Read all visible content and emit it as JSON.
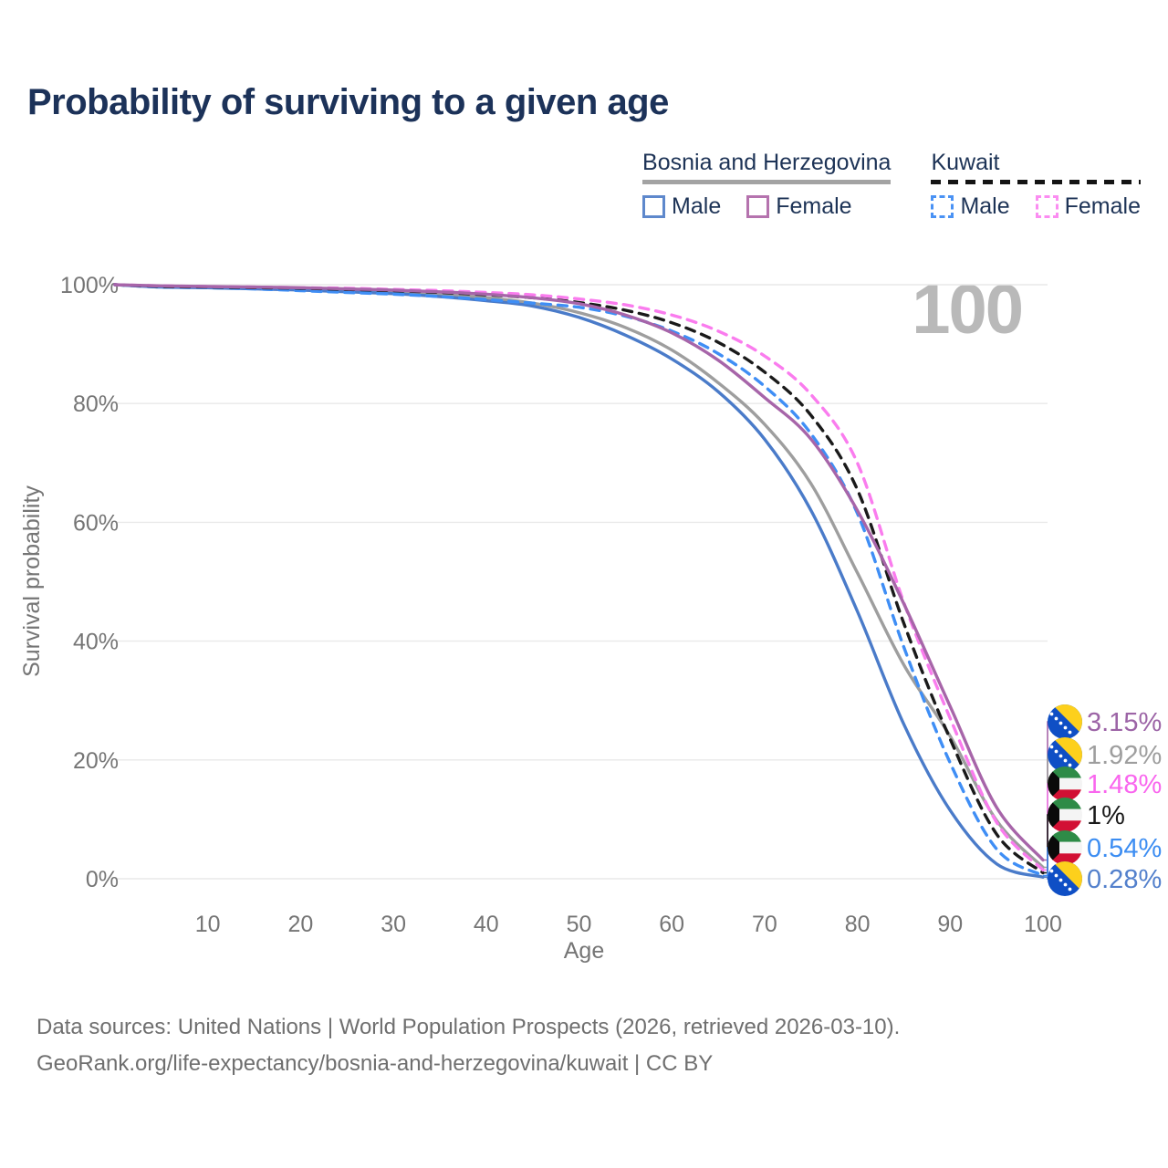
{
  "title": "Probability of surviving to a given age",
  "legend": {
    "groups": [
      {
        "label": "Bosnia and Herzegovina",
        "underline_style": "solid",
        "underline_color": "#a3a3a3",
        "items": [
          {
            "label": "Male",
            "swatch_color": "#5e88cc",
            "swatch_style": "solid"
          },
          {
            "label": "Female",
            "swatch_color": "#b573ae",
            "swatch_style": "solid"
          }
        ]
      },
      {
        "label": "Kuwait",
        "underline_style": "dashed",
        "underline_color": "#141414",
        "items": [
          {
            "label": "Male",
            "swatch_color": "#4a92f4",
            "swatch_style": "dashed"
          },
          {
            "label": "Female",
            "swatch_color": "#fb8df1",
            "swatch_style": "dashed"
          }
        ]
      }
    ]
  },
  "hover_annotation": {
    "age_label": "100"
  },
  "chart_data": {
    "type": "line",
    "xlabel": "Age",
    "ylabel": "Survival probability",
    "x_ticks": [
      10,
      20,
      30,
      40,
      50,
      60,
      70,
      80,
      90,
      100
    ],
    "y_ticks": [
      0,
      20,
      40,
      60,
      80,
      100
    ],
    "y_tick_suffix": "%",
    "xlim": [
      0,
      100
    ],
    "ylim": [
      0,
      100
    ],
    "grid": "horizontal",
    "x": [
      0,
      5,
      10,
      15,
      20,
      25,
      30,
      35,
      40,
      45,
      50,
      55,
      60,
      65,
      70,
      75,
      80,
      85,
      90,
      95,
      100
    ],
    "series": [
      {
        "id": "bih_both",
        "name": "Bosnia and Herzegovina — Both sexes",
        "country": "Bosnia and Herzegovina",
        "sex": "both",
        "line": "solid",
        "color": "#9e9e9e",
        "flag": "bih",
        "end_label": "1.92%",
        "label_color": "#9e9e9e",
        "end_value": 1.92,
        "values": [
          100,
          99.7,
          99.6,
          99.5,
          99.3,
          99.1,
          98.8,
          98.4,
          97.8,
          96.9,
          95.3,
          92.8,
          89.0,
          83.5,
          76.5,
          66.5,
          51.5,
          36.0,
          24.0,
          9.8,
          1.92
        ]
      },
      {
        "id": "bih_male",
        "name": "Bosnia and Herzegovina — Male",
        "country": "Bosnia and Herzegovina",
        "sex": "male",
        "line": "solid",
        "color": "#4a7bc9",
        "flag": "bih",
        "end_label": "0.28%",
        "label_color": "#5380cc",
        "end_value": 0.28,
        "values": [
          100,
          99.6,
          99.5,
          99.3,
          99.1,
          98.8,
          98.5,
          98.0,
          97.3,
          96.4,
          94.5,
          91.5,
          87.5,
          82.0,
          74.0,
          62.0,
          45.0,
          26.0,
          11.5,
          2.5,
          0.28
        ]
      },
      {
        "id": "kw_male",
        "name": "Kuwait — Male",
        "country": "Kuwait",
        "sex": "male",
        "line": "dashed",
        "color": "#3f8ef5",
        "flag": "kuwait",
        "end_label": "0.54%",
        "label_color": "#3c8df2",
        "end_value": 0.54,
        "values": [
          100,
          99.6,
          99.5,
          99.3,
          99.0,
          98.7,
          98.4,
          98.0,
          97.5,
          96.9,
          96.2,
          94.7,
          92.2,
          88.4,
          82.9,
          74.9,
          61.5,
          39.0,
          19.5,
          5.0,
          0.54
        ]
      },
      {
        "id": "kw_both",
        "name": "Kuwait — Both sexes",
        "country": "Kuwait",
        "sex": "both",
        "line": "dashed",
        "color": "#1a1a1a",
        "flag": "kuwait",
        "end_label": "1%",
        "label_color": "#1a1a1a",
        "end_value": 1.0,
        "values": [
          100,
          99.7,
          99.6,
          99.5,
          99.4,
          99.2,
          99.0,
          98.7,
          98.3,
          97.8,
          97.0,
          95.7,
          93.6,
          90.3,
          85.3,
          78.0,
          65.5,
          43.0,
          23.5,
          7.5,
          1.0
        ]
      },
      {
        "id": "bih_female",
        "name": "Bosnia and Herzegovina — Female",
        "country": "Bosnia and Herzegovina",
        "sex": "female",
        "line": "solid",
        "color": "#a765a9",
        "flag": "bih",
        "end_label": "3.15%",
        "label_color": "#9c64a6",
        "end_value": 3.15,
        "values": [
          100,
          99.8,
          99.7,
          99.6,
          99.5,
          99.3,
          99.1,
          98.8,
          98.4,
          97.8,
          96.8,
          94.9,
          91.9,
          87.3,
          81.0,
          74.0,
          62.0,
          46.3,
          29.0,
          12.0,
          3.15
        ]
      },
      {
        "id": "kw_female",
        "name": "Kuwait — Female",
        "country": "Kuwait",
        "sex": "female",
        "line": "dashed",
        "color": "#fa7cee",
        "flag": "kuwait",
        "end_label": "1.48%",
        "label_color": "#f966ee",
        "end_value": 1.48,
        "values": [
          100,
          99.8,
          99.7,
          99.6,
          99.5,
          99.4,
          99.2,
          99.0,
          98.7,
          98.3,
          97.6,
          96.6,
          94.9,
          92.2,
          88.0,
          81.5,
          70.0,
          46.5,
          27.0,
          9.5,
          1.48
        ]
      }
    ],
    "end_label_order": [
      "bih_female",
      "bih_both",
      "kw_female",
      "kw_both",
      "kw_male",
      "bih_male"
    ],
    "legend_position": "top-right"
  },
  "footer": {
    "line1": "Data sources: United Nations | World Population Prospects (2026, retrieved 2026-03-10).",
    "line2": "GeoRank.org/life-expectancy/bosnia-and-herzegovina/kuwait | CC BY"
  }
}
